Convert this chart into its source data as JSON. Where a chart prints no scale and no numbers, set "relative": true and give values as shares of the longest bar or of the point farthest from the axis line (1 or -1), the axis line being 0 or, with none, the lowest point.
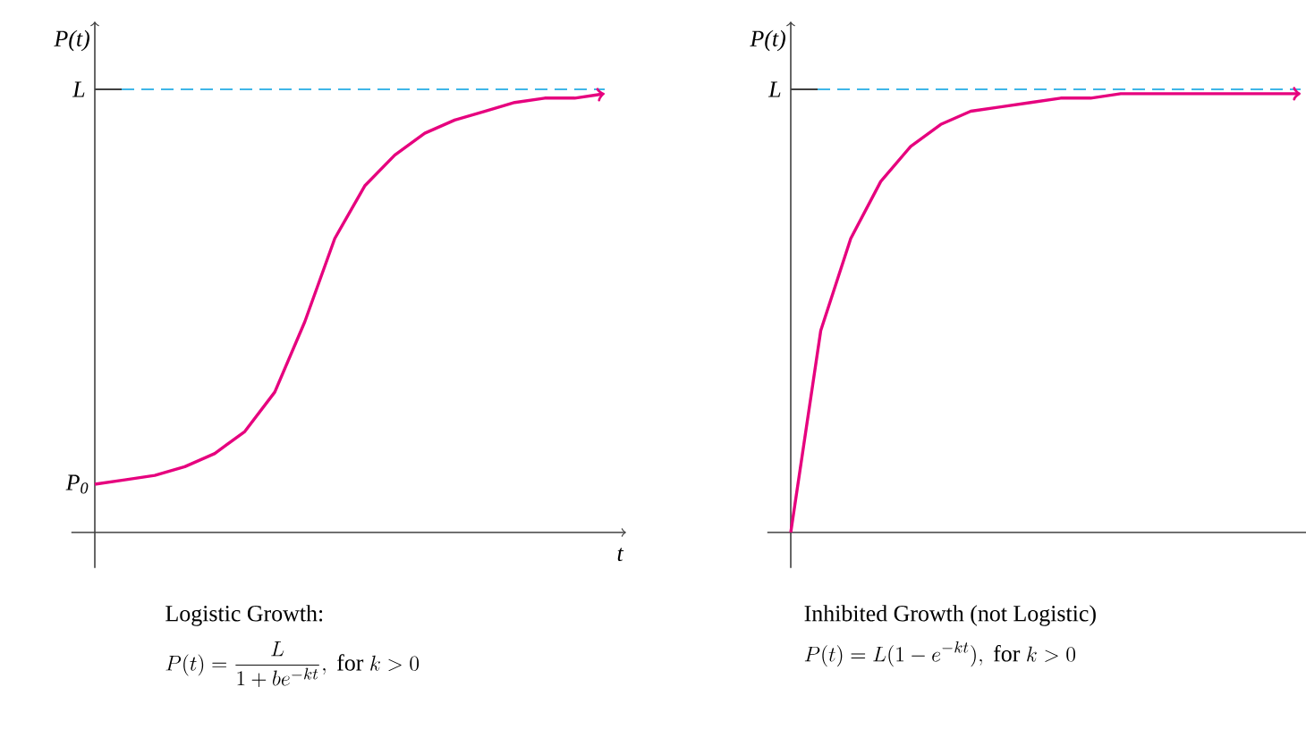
{
  "chart_data": [
    {
      "type": "line",
      "relative": true,
      "title": "Logistic Growth:",
      "subtitle": "P(t)=\\frac{L}{1+be^{-kt}},\\ \\mathrm{for}\\ k>0",
      "xlabel": "t",
      "ylabel": "P(t)",
      "marker": "none",
      "categories": [
        null,
        null,
        null,
        null,
        null,
        null,
        null,
        null,
        null,
        null,
        null,
        null,
        null,
        null,
        null,
        null,
        null,
        null
      ],
      "series": [
        {
          "color": "#e6007e",
          "values": [
            0.11,
            0.12,
            0.13,
            0.15,
            0.18,
            0.23,
            0.32,
            0.48,
            0.67,
            0.79,
            0.86,
            0.91,
            0.94,
            0.96,
            0.98,
            0.99,
            0.99,
            1
          ]
        }
      ],
      "ref_lines": [
        {
          "axis": "y",
          "value": 1.01,
          "label": "L",
          "color": "#3fb6e8",
          "line_style": "dashed"
        }
      ],
      "annotations": [
        "P$_{0}$"
      ]
    },
    {
      "type": "line",
      "relative": true,
      "title": "Inhibited Growth (not Logistic)",
      "subtitle": "P(t)=L(1-e^{-kt}),\\ \\mathrm{for}\\ k>0",
      "ylabel": "P(t)",
      "marker": "none",
      "categories": [
        null,
        null,
        null,
        null,
        null,
        null,
        null,
        null,
        null,
        null,
        null,
        null,
        null,
        null,
        null,
        null,
        null,
        null
      ],
      "series": [
        {
          "color": "#e6007e",
          "values": [
            0,
            0.46,
            0.67,
            0.8,
            0.88,
            0.93,
            0.96,
            0.97,
            0.98,
            0.99,
            0.99,
            1,
            1,
            1,
            1,
            1,
            1,
            1
          ]
        }
      ],
      "ref_lines": [
        {
          "axis": "y",
          "value": 1.01,
          "label": "L",
          "color": "#3fb6e8",
          "line_style": "dashed"
        }
      ]
    }
  ]
}
